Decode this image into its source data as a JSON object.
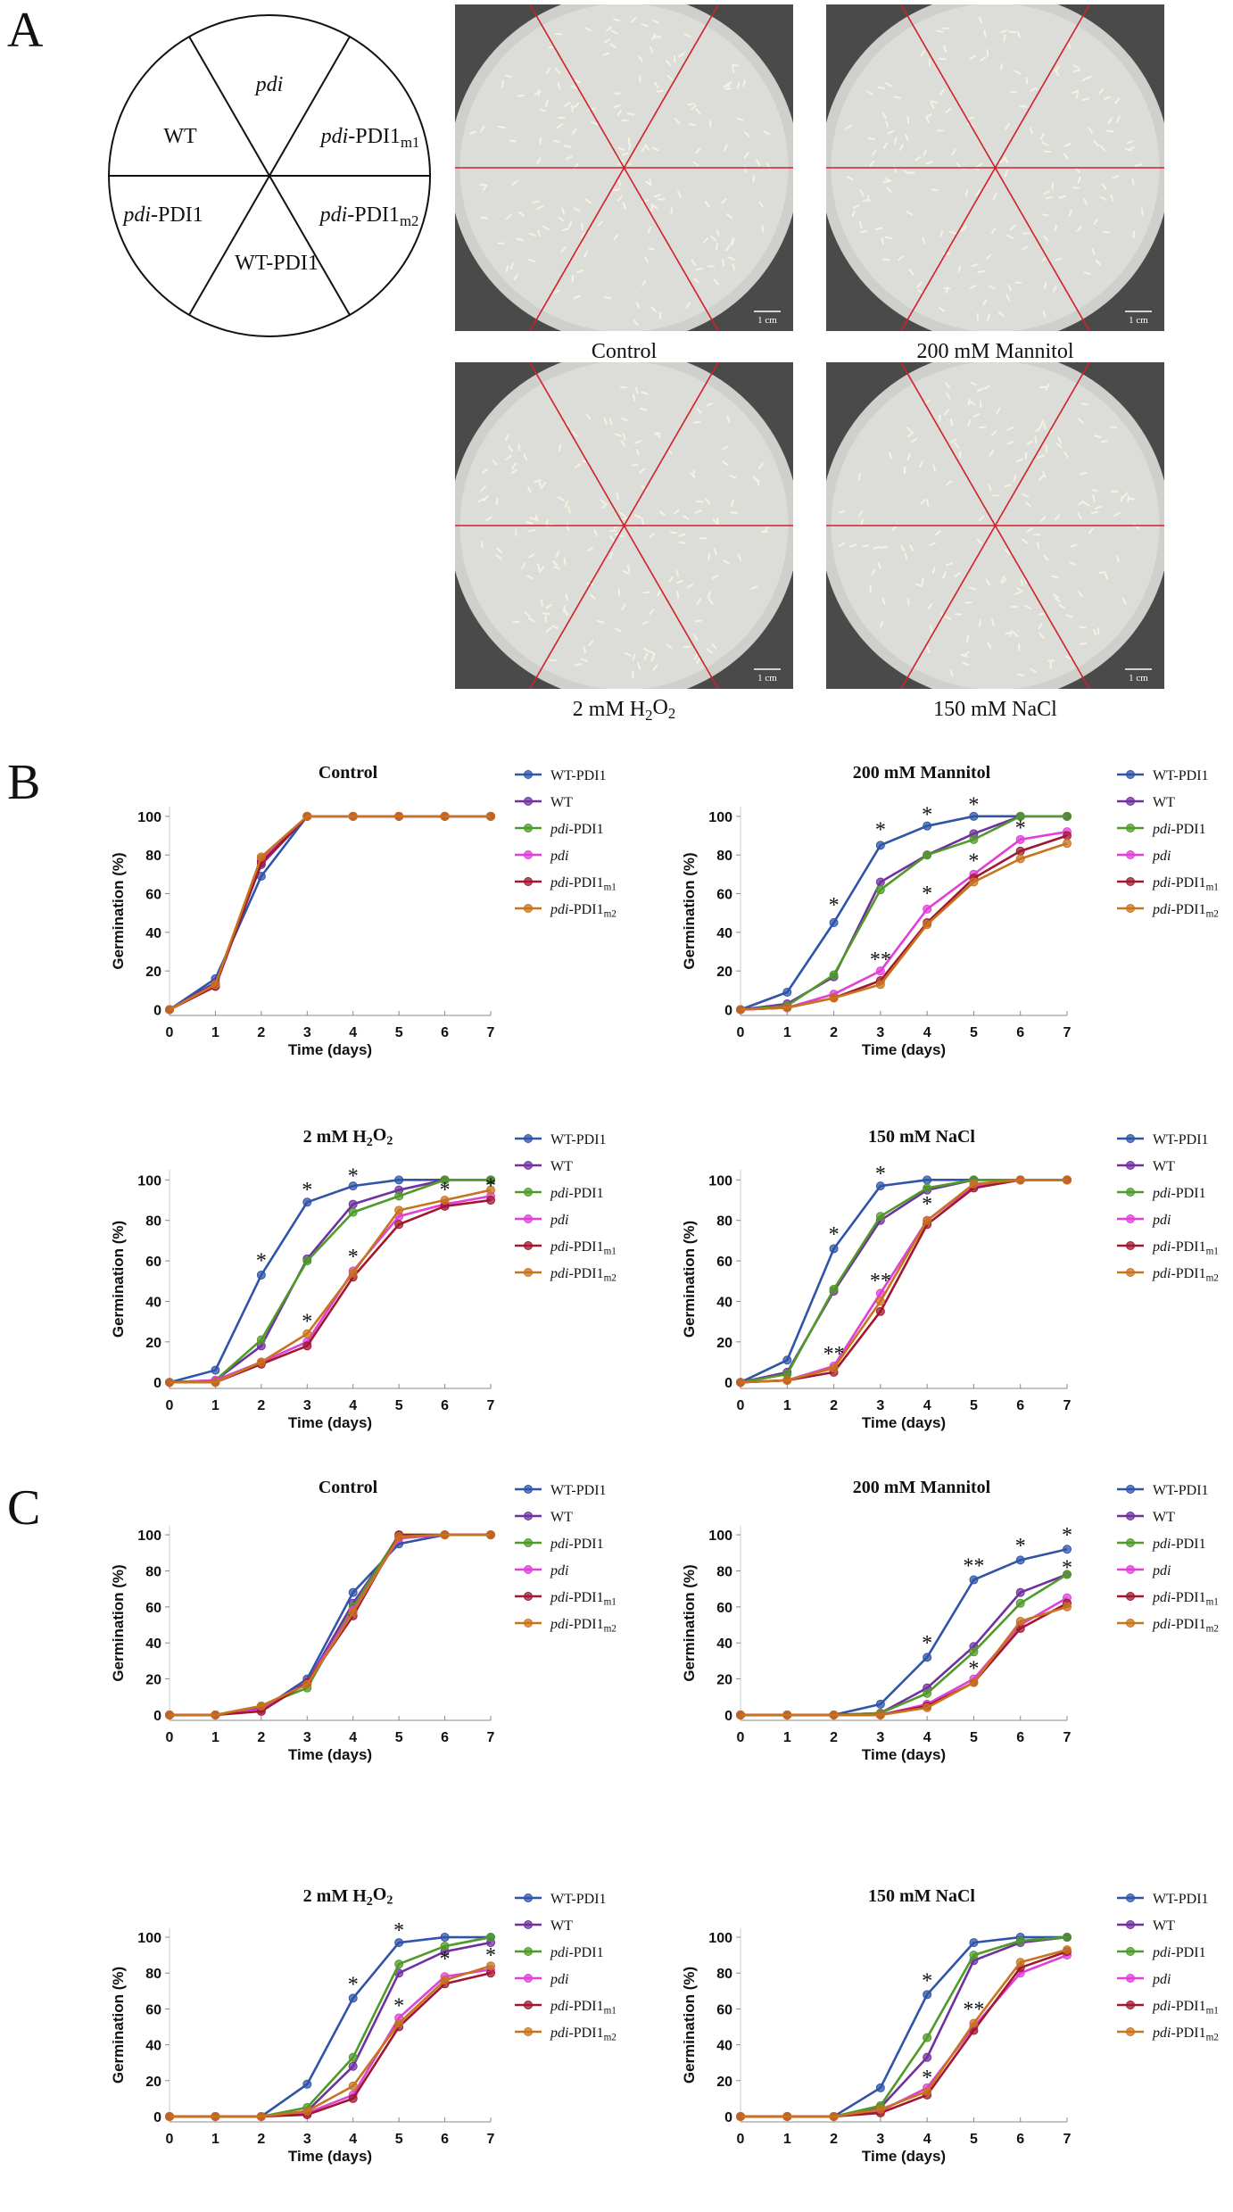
{
  "panel_labels": [
    "A",
    "B",
    "C"
  ],
  "diagram": {
    "sectors": [
      "pdi",
      "pdi-PDI1m1",
      "pdi-PDI1m2",
      "WT-PDI1",
      "pdi-PDI1",
      "WT"
    ]
  },
  "plates": [
    {
      "label": "Control",
      "scale": "1 cm"
    },
    {
      "label": "200 mM Mannitol",
      "scale": "1 cm"
    },
    {
      "label": "2 mM H2O2",
      "scale": "1 cm"
    },
    {
      "label": "150 mM NaCl",
      "scale": "1 cm"
    }
  ],
  "chart_data": [
    {
      "type": "line",
      "title": "Control",
      "xlabel": "Time (days)",
      "ylabel": "Germination (%)",
      "x": [
        0,
        1,
        2,
        3,
        4,
        5,
        6,
        7
      ],
      "xlim": [
        0,
        7
      ],
      "xticks": [
        0,
        1,
        2,
        3,
        4,
        5,
        6,
        7
      ],
      "ylim": [
        -3,
        105
      ],
      "yticks": [
        0,
        20,
        40,
        60,
        80,
        100
      ],
      "series": [
        {
          "name": "WT-PDI1",
          "color": "#2f54a8",
          "values": [
            0,
            16,
            69,
            100,
            100,
            100,
            100,
            100
          ]
        },
        {
          "name": "WT",
          "color": "#7030a0",
          "values": [
            0,
            14,
            75,
            100,
            100,
            100,
            100,
            100
          ]
        },
        {
          "name": "pdi-PDI1",
          "color": "#4f9a28",
          "values": [
            0,
            13,
            78,
            100,
            100,
            100,
            100,
            100
          ]
        },
        {
          "name": "pdi",
          "color": "#e03fd8",
          "values": [
            0,
            12,
            77,
            100,
            100,
            100,
            100,
            100
          ]
        },
        {
          "name": "pdi-PDI1m1",
          "color": "#a01830",
          "values": [
            0,
            12,
            76,
            100,
            100,
            100,
            100,
            100
          ]
        },
        {
          "name": "pdi-PDI1m2",
          "color": "#c8741e",
          "values": [
            0,
            13,
            79,
            100,
            100,
            100,
            100,
            100
          ]
        }
      ],
      "annotations": []
    },
    {
      "type": "line",
      "title": "200 mM Mannitol",
      "xlabel": "Time (days)",
      "ylabel": "Germination (%)",
      "x": [
        0,
        1,
        2,
        3,
        4,
        5,
        6,
        7
      ],
      "xlim": [
        0,
        7
      ],
      "xticks": [
        0,
        1,
        2,
        3,
        4,
        5,
        6,
        7
      ],
      "ylim": [
        -3,
        105
      ],
      "yticks": [
        0,
        20,
        40,
        60,
        80,
        100
      ],
      "series": [
        {
          "name": "WT-PDI1",
          "color": "#2f54a8",
          "values": [
            0,
            9,
            45,
            85,
            95,
            100,
            100,
            100
          ]
        },
        {
          "name": "WT",
          "color": "#7030a0",
          "values": [
            0,
            3,
            17,
            66,
            80,
            91,
            100,
            100
          ]
        },
        {
          "name": "pdi-PDI1",
          "color": "#4f9a28",
          "values": [
            0,
            2,
            18,
            62,
            80,
            88,
            100,
            100
          ]
        },
        {
          "name": "pdi",
          "color": "#e03fd8",
          "values": [
            0,
            1,
            8,
            20,
            52,
            70,
            88,
            92
          ]
        },
        {
          "name": "pdi-PDI1m1",
          "color": "#a01830",
          "values": [
            0,
            1,
            6,
            15,
            45,
            68,
            82,
            90
          ]
        },
        {
          "name": "pdi-PDI1m2",
          "color": "#c8741e",
          "values": [
            0,
            1,
            6,
            13,
            44,
            66,
            78,
            86
          ]
        }
      ],
      "annotations": [
        {
          "text": "*",
          "x": 2,
          "y": 56
        },
        {
          "text": "*",
          "x": 3,
          "y": 95
        },
        {
          "text": "*",
          "x": 4,
          "y": 103
        },
        {
          "text": "*",
          "x": 5,
          "y": 108
        },
        {
          "text": "*",
          "x": 6,
          "y": 96
        },
        {
          "text": "*",
          "x": 4,
          "y": 62
        },
        {
          "text": "*",
          "x": 5,
          "y": 79
        },
        {
          "text": "**",
          "x": 3,
          "y": 28
        }
      ]
    },
    {
      "type": "line",
      "title": "2 mM H2O2",
      "xlabel": "Time (days)",
      "ylabel": "Germination (%)",
      "x": [
        0,
        1,
        2,
        3,
        4,
        5,
        6,
        7
      ],
      "xlim": [
        0,
        7
      ],
      "xticks": [
        0,
        1,
        2,
        3,
        4,
        5,
        6,
        7
      ],
      "ylim": [
        -3,
        105
      ],
      "yticks": [
        0,
        20,
        40,
        60,
        80,
        100
      ],
      "series": [
        {
          "name": "WT-PDI1",
          "color": "#2f54a8",
          "values": [
            0,
            6,
            53,
            89,
            97,
            100,
            100,
            100
          ]
        },
        {
          "name": "WT",
          "color": "#7030a0",
          "values": [
            0,
            1,
            18,
            61,
            88,
            95,
            100,
            100
          ]
        },
        {
          "name": "pdi-PDI1",
          "color": "#4f9a28",
          "values": [
            0,
            1,
            21,
            60,
            84,
            92,
            100,
            100
          ]
        },
        {
          "name": "pdi",
          "color": "#e03fd8",
          "values": [
            0,
            1,
            10,
            20,
            55,
            82,
            88,
            92
          ]
        },
        {
          "name": "pdi-PDI1m1",
          "color": "#a01830",
          "values": [
            0,
            0,
            9,
            18,
            52,
            78,
            87,
            90
          ]
        },
        {
          "name": "pdi-PDI1m2",
          "color": "#c8741e",
          "values": [
            0,
            0,
            10,
            24,
            54,
            85,
            90,
            95
          ]
        }
      ],
      "annotations": [
        {
          "text": "*",
          "x": 2,
          "y": 62
        },
        {
          "text": "*",
          "x": 3,
          "y": 97
        },
        {
          "text": "*",
          "x": 4,
          "y": 104
        },
        {
          "text": "*",
          "x": 6,
          "y": 97
        },
        {
          "text": "*",
          "x": 7,
          "y": 99
        },
        {
          "text": "*",
          "x": 3,
          "y": 32
        },
        {
          "text": "*",
          "x": 4,
          "y": 64
        }
      ]
    },
    {
      "type": "line",
      "title": "150 mM NaCl",
      "xlabel": "Time (days)",
      "ylabel": "Germination (%)",
      "x": [
        0,
        1,
        2,
        3,
        4,
        5,
        6,
        7
      ],
      "xlim": [
        0,
        7
      ],
      "xticks": [
        0,
        1,
        2,
        3,
        4,
        5,
        6,
        7
      ],
      "ylim": [
        -3,
        105
      ],
      "yticks": [
        0,
        20,
        40,
        60,
        80,
        100
      ],
      "series": [
        {
          "name": "WT-PDI1",
          "color": "#2f54a8",
          "values": [
            0,
            11,
            66,
            97,
            100,
            100,
            100,
            100
          ]
        },
        {
          "name": "WT",
          "color": "#7030a0",
          "values": [
            0,
            5,
            45,
            80,
            95,
            100,
            100,
            100
          ]
        },
        {
          "name": "pdi-PDI1",
          "color": "#4f9a28",
          "values": [
            0,
            4,
            46,
            82,
            96,
            100,
            100,
            100
          ]
        },
        {
          "name": "pdi",
          "color": "#e03fd8",
          "values": [
            0,
            1,
            8,
            44,
            80,
            97,
            100,
            100
          ]
        },
        {
          "name": "pdi-PDI1m1",
          "color": "#a01830",
          "values": [
            0,
            1,
            5,
            35,
            78,
            96,
            100,
            100
          ]
        },
        {
          "name": "pdi-PDI1m2",
          "color": "#c8741e",
          "values": [
            0,
            1,
            7,
            40,
            80,
            98,
            100,
            100
          ]
        }
      ],
      "annotations": [
        {
          "text": "*",
          "x": 2,
          "y": 75
        },
        {
          "text": "*",
          "x": 3,
          "y": 105
        },
        {
          "text": "**",
          "x": 3,
          "y": 52
        },
        {
          "text": "*",
          "x": 4,
          "y": 90
        },
        {
          "text": "**",
          "x": 2,
          "y": 16
        }
      ]
    },
    {
      "type": "line",
      "title": "Control",
      "xlabel": "Time (days)",
      "ylabel": "Germination (%)",
      "x": [
        0,
        1,
        2,
        3,
        4,
        5,
        6,
        7
      ],
      "xlim": [
        0,
        7
      ],
      "xticks": [
        0,
        1,
        2,
        3,
        4,
        5,
        6,
        7
      ],
      "ylim": [
        -3,
        105
      ],
      "yticks": [
        0,
        20,
        40,
        60,
        80,
        100
      ],
      "series": [
        {
          "name": "WT-PDI1",
          "color": "#2f54a8",
          "values": [
            0,
            0,
            3,
            20,
            68,
            95,
            100,
            100
          ]
        },
        {
          "name": "WT",
          "color": "#7030a0",
          "values": [
            0,
            0,
            4,
            18,
            62,
            99,
            100,
            100
          ]
        },
        {
          "name": "pdi-PDI1",
          "color": "#4f9a28",
          "values": [
            0,
            0,
            5,
            15,
            60,
            100,
            100,
            100
          ]
        },
        {
          "name": "pdi",
          "color": "#e03fd8",
          "values": [
            0,
            0,
            3,
            18,
            58,
            98,
            100,
            100
          ]
        },
        {
          "name": "pdi-PDI1m1",
          "color": "#a01830",
          "values": [
            0,
            0,
            2,
            18,
            55,
            100,
            100,
            100
          ]
        },
        {
          "name": "pdi-PDI1m2",
          "color": "#c8741e",
          "values": [
            0,
            0,
            5,
            17,
            57,
            99,
            100,
            100
          ]
        }
      ],
      "annotations": []
    },
    {
      "type": "line",
      "title": "200 mM Mannitol",
      "xlabel": "Time (days)",
      "ylabel": "Germination (%)",
      "x": [
        0,
        1,
        2,
        3,
        4,
        5,
        6,
        7
      ],
      "xlim": [
        0,
        7
      ],
      "xticks": [
        0,
        1,
        2,
        3,
        4,
        5,
        6,
        7
      ],
      "ylim": [
        -3,
        105
      ],
      "yticks": [
        0,
        20,
        40,
        60,
        80,
        100
      ],
      "series": [
        {
          "name": "WT-PDI1",
          "color": "#2f54a8",
          "values": [
            0,
            0,
            0,
            6,
            32,
            75,
            86,
            92
          ]
        },
        {
          "name": "WT",
          "color": "#7030a0",
          "values": [
            0,
            0,
            0,
            1,
            15,
            38,
            68,
            78
          ]
        },
        {
          "name": "pdi-PDI1",
          "color": "#4f9a28",
          "values": [
            0,
            0,
            0,
            1,
            12,
            35,
            62,
            78
          ]
        },
        {
          "name": "pdi",
          "color": "#e03fd8",
          "values": [
            0,
            0,
            0,
            0,
            6,
            20,
            50,
            65
          ]
        },
        {
          "name": "pdi-PDI1m1",
          "color": "#a01830",
          "values": [
            0,
            0,
            0,
            0,
            5,
            18,
            48,
            62
          ]
        },
        {
          "name": "pdi-PDI1m2",
          "color": "#c8741e",
          "values": [
            0,
            0,
            0,
            0,
            4,
            18,
            52,
            60
          ]
        }
      ],
      "annotations": [
        {
          "text": "*",
          "x": 4,
          "y": 42
        },
        {
          "text": "**",
          "x": 5,
          "y": 85
        },
        {
          "text": "*",
          "x": 6,
          "y": 96
        },
        {
          "text": "*",
          "x": 7,
          "y": 102
        },
        {
          "text": "*",
          "x": 7,
          "y": 84
        },
        {
          "text": "*",
          "x": 5,
          "y": 28
        }
      ]
    },
    {
      "type": "line",
      "title": "2 mM H2O2",
      "xlabel": "Time (days)",
      "ylabel": "Germination (%)",
      "x": [
        0,
        1,
        2,
        3,
        4,
        5,
        6,
        7
      ],
      "xlim": [
        0,
        7
      ],
      "xticks": [
        0,
        1,
        2,
        3,
        4,
        5,
        6,
        7
      ],
      "ylim": [
        -3,
        105
      ],
      "yticks": [
        0,
        20,
        40,
        60,
        80,
        100
      ],
      "series": [
        {
          "name": "WT-PDI1",
          "color": "#2f54a8",
          "values": [
            0,
            0,
            0,
            18,
            66,
            97,
            100,
            100
          ]
        },
        {
          "name": "WT",
          "color": "#7030a0",
          "values": [
            0,
            0,
            0,
            3,
            28,
            80,
            92,
            97
          ]
        },
        {
          "name": "pdi-PDI1",
          "color": "#4f9a28",
          "values": [
            0,
            0,
            0,
            5,
            33,
            85,
            95,
            100
          ]
        },
        {
          "name": "pdi",
          "color": "#e03fd8",
          "values": [
            0,
            0,
            0,
            2,
            12,
            55,
            78,
            82
          ]
        },
        {
          "name": "pdi-PDI1m1",
          "color": "#a01830",
          "values": [
            0,
            0,
            0,
            1,
            10,
            50,
            74,
            80
          ]
        },
        {
          "name": "pdi-PDI1m2",
          "color": "#c8741e",
          "values": [
            0,
            0,
            0,
            3,
            17,
            52,
            76,
            84
          ]
        }
      ],
      "annotations": [
        {
          "text": "*",
          "x": 4,
          "y": 76
        },
        {
          "text": "*",
          "x": 5,
          "y": 106
        },
        {
          "text": "*",
          "x": 6,
          "y": 90
        },
        {
          "text": "*",
          "x": 7,
          "y": 92
        },
        {
          "text": "*",
          "x": 5,
          "y": 64
        }
      ]
    },
    {
      "type": "line",
      "title": "150 mM NaCl",
      "xlabel": "Time (days)",
      "ylabel": "Germination (%)",
      "x": [
        0,
        1,
        2,
        3,
        4,
        5,
        6,
        7
      ],
      "xlim": [
        0,
        7
      ],
      "xticks": [
        0,
        1,
        2,
        3,
        4,
        5,
        6,
        7
      ],
      "ylim": [
        -3,
        105
      ],
      "yticks": [
        0,
        20,
        40,
        60,
        80,
        100
      ],
      "series": [
        {
          "name": "WT-PDI1",
          "color": "#2f54a8",
          "values": [
            0,
            0,
            0,
            16,
            68,
            97,
            100,
            100
          ]
        },
        {
          "name": "WT",
          "color": "#7030a0",
          "values": [
            0,
            0,
            0,
            5,
            33,
            87,
            97,
            100
          ]
        },
        {
          "name": "pdi-PDI1",
          "color": "#4f9a28",
          "values": [
            0,
            0,
            0,
            6,
            44,
            90,
            98,
            100
          ]
        },
        {
          "name": "pdi",
          "color": "#e03fd8",
          "values": [
            0,
            0,
            0,
            3,
            16,
            50,
            80,
            90
          ]
        },
        {
          "name": "pdi-PDI1m1",
          "color": "#a01830",
          "values": [
            0,
            0,
            0,
            2,
            12,
            48,
            83,
            92
          ]
        },
        {
          "name": "pdi-PDI1m2",
          "color": "#c8741e",
          "values": [
            0,
            0,
            0,
            4,
            14,
            52,
            86,
            93
          ]
        }
      ],
      "annotations": [
        {
          "text": "*",
          "x": 4,
          "y": 78
        },
        {
          "text": "**",
          "x": 5,
          "y": 62
        },
        {
          "text": "*",
          "x": 4,
          "y": 24
        }
      ]
    }
  ]
}
